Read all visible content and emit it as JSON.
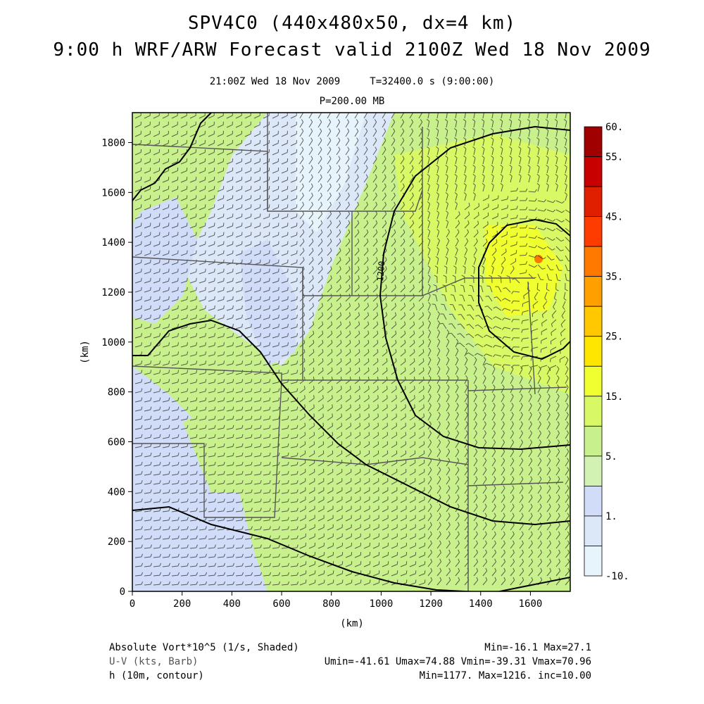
{
  "title": "SPV4C0 (440x480x50, dx=4 km)",
  "subtitle": "9:00 h WRF/ARW Forecast valid 2100Z Wed 18 Nov 2009",
  "valid_time": "21:00Z Wed 18 Nov 2009",
  "sim_time": "T=32400.0 s (9:00:00)",
  "level": "P=200.00 MB",
  "x_axis": {
    "label": "(km)",
    "ticks": [
      "0",
      "200",
      "400",
      "600",
      "800",
      "1000",
      "1200",
      "1400",
      "1600"
    ]
  },
  "y_axis": {
    "label": "(km)",
    "ticks": [
      "0",
      "200",
      "400",
      "600",
      "800",
      "1000",
      "1200",
      "1400",
      "1600",
      "1800"
    ]
  },
  "contour_label": "1200",
  "colorbar": {
    "labels": [
      "60.",
      "55.",
      "45.",
      "35.",
      "25.",
      "15.",
      "5.",
      "1.",
      "-10."
    ],
    "colors": [
      "#a00000",
      "#c80000",
      "#e01e00",
      "#ff3c00",
      "#ff7800",
      "#ffa000",
      "#ffc800",
      "#ffe600",
      "#f0ff30",
      "#d8f866",
      "#c8f08c",
      "#d2f2b4",
      "#d0dcf8",
      "#dce8f8",
      "#e8f4fc"
    ]
  },
  "footer": {
    "line1_left": "Absolute Vort*10^5 (1/s, Shaded)",
    "line1_right": "Min=-16.1 Max=27.1",
    "line2_left": "U-V (kts, Barb)",
    "line2_right": "Umin=-41.61 Umax=74.88 Vmin=-39.31 Vmax=70.96",
    "line3_left": "h (10m, contour)",
    "line3_right": "Min=1177. Max=1216. inc=10.00"
  }
}
